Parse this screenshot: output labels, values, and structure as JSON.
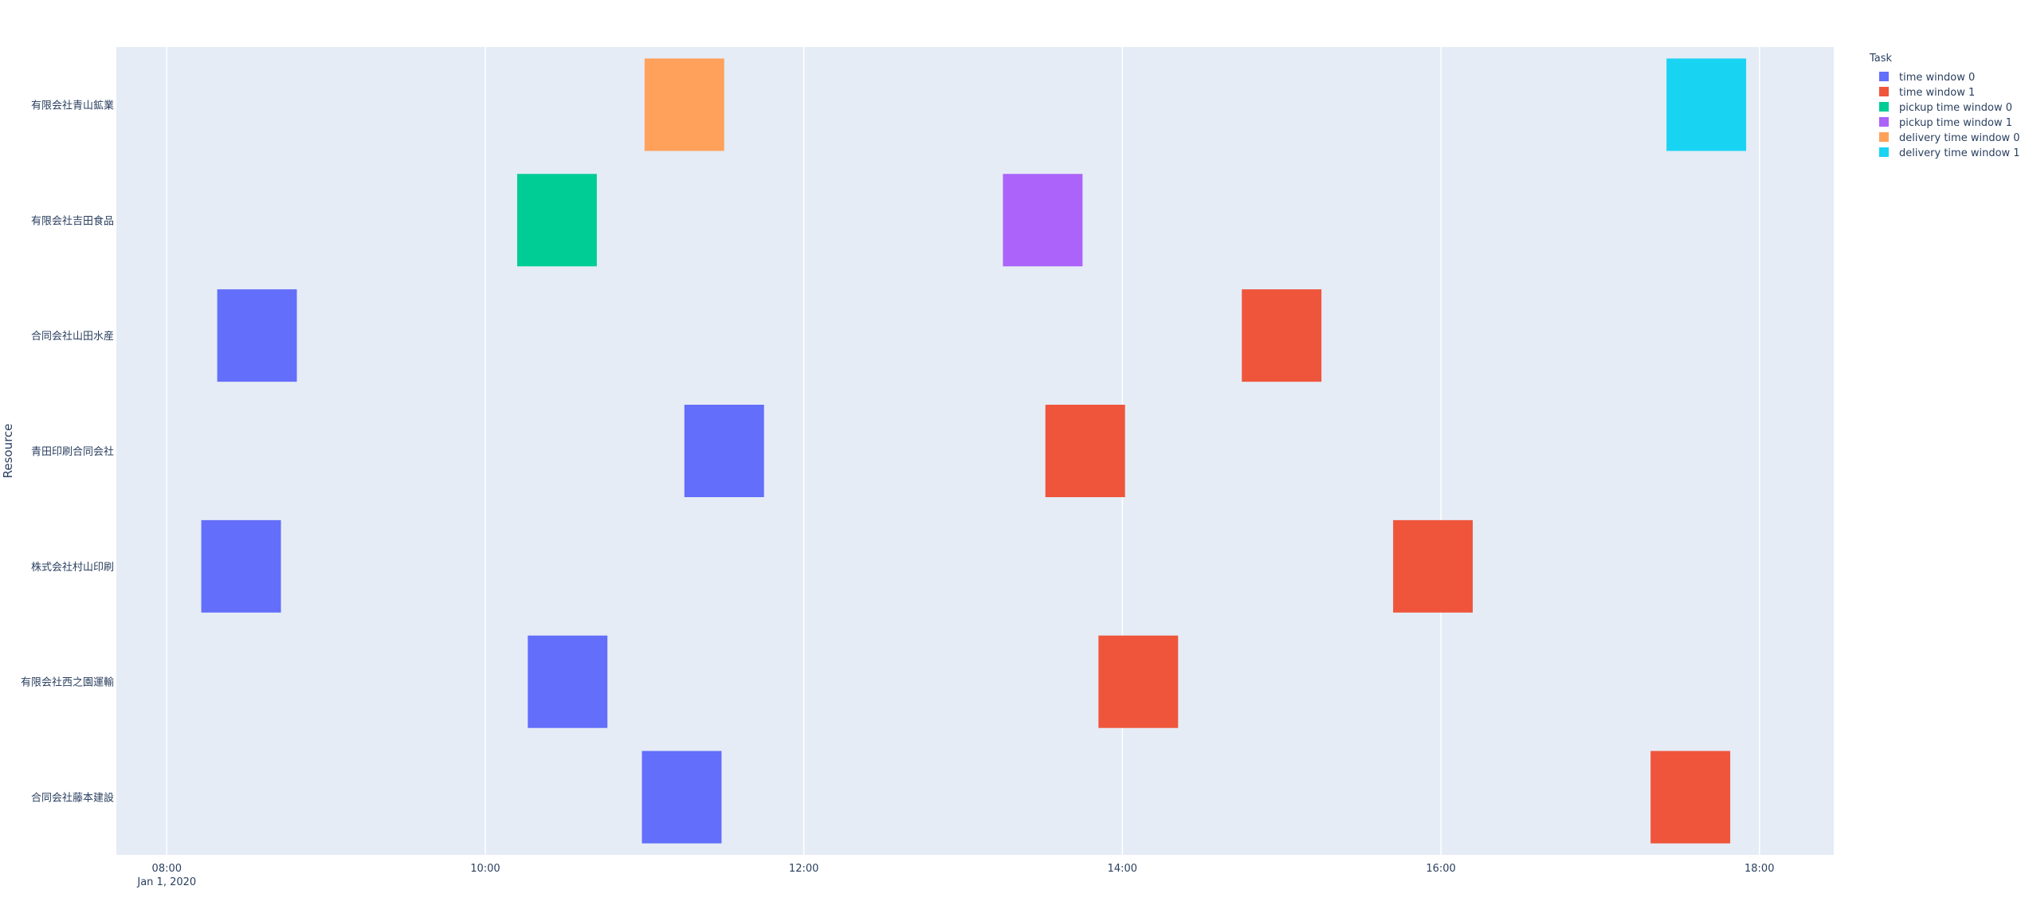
{
  "chart_data": {
    "type": "timeline",
    "title": "",
    "xlabel": "",
    "ylabel": "Resource",
    "x_range": [
      "2020-01-01 07:41",
      "2020-01-01 18:28"
    ],
    "x_ticks": [
      {
        "value": "2020-01-01 08:00",
        "label": "08:00",
        "sublabel": "Jan 1, 2020"
      },
      {
        "value": "2020-01-01 10:00",
        "label": "10:00",
        "sublabel": ""
      },
      {
        "value": "2020-01-01 12:00",
        "label": "12:00",
        "sublabel": ""
      },
      {
        "value": "2020-01-01 14:00",
        "label": "14:00",
        "sublabel": ""
      },
      {
        "value": "2020-01-01 16:00",
        "label": "16:00",
        "sublabel": ""
      },
      {
        "value": "2020-01-01 18:00",
        "label": "18:00",
        "sublabel": ""
      }
    ],
    "categories": [
      "有限会社青山鉱業",
      "有限会社吉田食品",
      "合同会社山田水産",
      "青田印刷合同会社",
      "株式会社村山印刷",
      "有限会社西之園運輸",
      "合同会社藤本建設"
    ],
    "legend": {
      "title": "Task",
      "position": "top-right",
      "items": [
        {
          "name": "time window 0",
          "color": "#636efa"
        },
        {
          "name": "time window 1",
          "color": "#ef553b"
        },
        {
          "name": "pickup time window 0",
          "color": "#00cc96"
        },
        {
          "name": "pickup time window 1",
          "color": "#ab63fa"
        },
        {
          "name": "delivery time window 0",
          "color": "#ffa15a"
        },
        {
          "name": "delivery time window 1",
          "color": "#19d3f3"
        }
      ]
    },
    "tasks": [
      {
        "resource": "有限会社青山鉱業",
        "task": "delivery time window 0",
        "start": "2020-01-01 11:00",
        "end": "2020-01-01 11:30"
      },
      {
        "resource": "有限会社青山鉱業",
        "task": "delivery time window 1",
        "start": "2020-01-01 17:25",
        "end": "2020-01-01 17:55"
      },
      {
        "resource": "有限会社吉田食品",
        "task": "pickup time window 0",
        "start": "2020-01-01 10:12",
        "end": "2020-01-01 10:42"
      },
      {
        "resource": "有限会社吉田食品",
        "task": "pickup time window 1",
        "start": "2020-01-01 13:15",
        "end": "2020-01-01 13:45"
      },
      {
        "resource": "合同会社山田水産",
        "task": "time window 0",
        "start": "2020-01-01 08:19",
        "end": "2020-01-01 08:49"
      },
      {
        "resource": "合同会社山田水産",
        "task": "time window 1",
        "start": "2020-01-01 14:45",
        "end": "2020-01-01 15:15"
      },
      {
        "resource": "青田印刷合同会社",
        "task": "time window 0",
        "start": "2020-01-01 11:15",
        "end": "2020-01-01 11:45"
      },
      {
        "resource": "青田印刷合同会社",
        "task": "time window 1",
        "start": "2020-01-01 13:31",
        "end": "2020-01-01 14:01"
      },
      {
        "resource": "株式会社村山印刷",
        "task": "time window 0",
        "start": "2020-01-01 08:13",
        "end": "2020-01-01 08:43"
      },
      {
        "resource": "株式会社村山印刷",
        "task": "time window 1",
        "start": "2020-01-01 15:42",
        "end": "2020-01-01 16:12"
      },
      {
        "resource": "有限会社西之園運輸",
        "task": "time window 0",
        "start": "2020-01-01 10:16",
        "end": "2020-01-01 10:46"
      },
      {
        "resource": "有限会社西之園運輸",
        "task": "time window 1",
        "start": "2020-01-01 13:51",
        "end": "2020-01-01 14:21"
      },
      {
        "resource": "合同会社藤本建設",
        "task": "time window 0",
        "start": "2020-01-01 10:59",
        "end": "2020-01-01 11:29"
      },
      {
        "resource": "合同会社藤本建設",
        "task": "time window 1",
        "start": "2020-01-01 17:19",
        "end": "2020-01-01 17:49"
      }
    ],
    "grid": true,
    "plot_background": "#e5ecf6",
    "grid_color": "#ffffff",
    "text_color": "#2a3f5f"
  }
}
